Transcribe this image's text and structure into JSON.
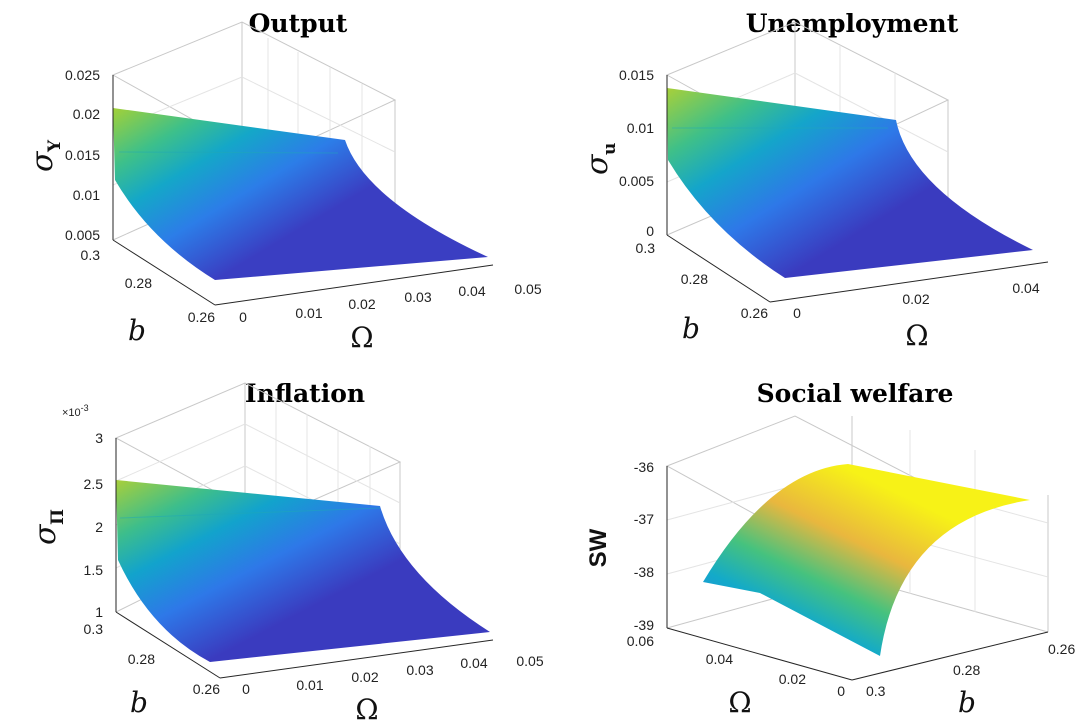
{
  "chart_data": [
    {
      "type": "surface",
      "title": "Output",
      "zlabel_main": "σ",
      "zlabel_sub": "Y",
      "xlabel": "Ω",
      "ylabel": "b",
      "x_ticks": [
        "0",
        "0.01",
        "0.02",
        "0.03",
        "0.04",
        "0.05"
      ],
      "y_ticks": [
        "0.26",
        "0.28",
        "0.3"
      ],
      "z_ticks": [
        "0.005",
        "0.01",
        "0.015",
        "0.02",
        "0.025"
      ],
      "xlim": [
        0,
        0.05
      ],
      "ylim": [
        0.25,
        0.3
      ],
      "zlim": [
        0.005,
        0.025
      ],
      "grid": true,
      "colormap": "parula",
      "corners": {
        "omega0_b03": 0.0205,
        "omega0_b025": 0.0058,
        "omega005_b03": 0.0155,
        "omega005_b025": 0.0045
      }
    },
    {
      "type": "surface",
      "title": "Unemployment",
      "zlabel_main": "σ",
      "zlabel_sub": "u",
      "xlabel": "Ω",
      "ylabel": "b",
      "x_ticks": [
        "0",
        "0.02",
        "0.04"
      ],
      "y_ticks": [
        "0.26",
        "0.28",
        "0.3"
      ],
      "z_ticks": [
        "0",
        "0.005",
        "0.01",
        "0.015"
      ],
      "xlim": [
        0,
        0.05
      ],
      "ylim": [
        0.25,
        0.3
      ],
      "zlim": [
        0,
        0.015
      ],
      "grid": true,
      "colormap": "parula",
      "corners": {
        "omega0_b03": 0.0142,
        "omega0_b025": 0.0008,
        "omega005_b03": 0.0105,
        "omega005_b025": 0.0001
      }
    },
    {
      "type": "surface",
      "title": "Inflation",
      "zlabel_main": "σ",
      "zlabel_sub": "Π",
      "exponent": "×10",
      "exponent_power": "-3",
      "xlabel": "Ω",
      "ylabel": "b",
      "x_ticks": [
        "0",
        "0.01",
        "0.02",
        "0.03",
        "0.04",
        "0.05"
      ],
      "y_ticks": [
        "0.26",
        "0.28",
        "0.3"
      ],
      "z_ticks": [
        "1",
        "1.5",
        "2",
        "2.5",
        "3"
      ],
      "xlim": [
        0,
        0.05
      ],
      "ylim": [
        0.25,
        0.3
      ],
      "zlim": [
        1,
        3
      ],
      "grid": true,
      "colormap": "parula",
      "corners": {
        "omega0_b03": 2.55,
        "omega0_b025": 1.05,
        "omega005_b03": 2.2,
        "omega005_b025": 0.98
      }
    },
    {
      "type": "surface",
      "title": "Social welfare",
      "zlabel": "SW",
      "xlabel": "Ω",
      "ylabel": "b",
      "x_ticks": [
        "0",
        "0.02",
        "0.04",
        "0.06"
      ],
      "y_ticks": [
        "0.26",
        "0.28",
        "0.3"
      ],
      "z_ticks": [
        "-39",
        "-38",
        "-37",
        "-36"
      ],
      "xlim": [
        0,
        0.06
      ],
      "ylim": [
        0.25,
        0.3
      ],
      "zlim": [
        -39,
        -36
      ],
      "grid": true,
      "colormap": "parula",
      "corners": {
        "omega006_b03": -38.2,
        "omega006_b025": -36.3,
        "omega0_b03": -38.8,
        "omega0_b025": -36.5
      }
    }
  ]
}
